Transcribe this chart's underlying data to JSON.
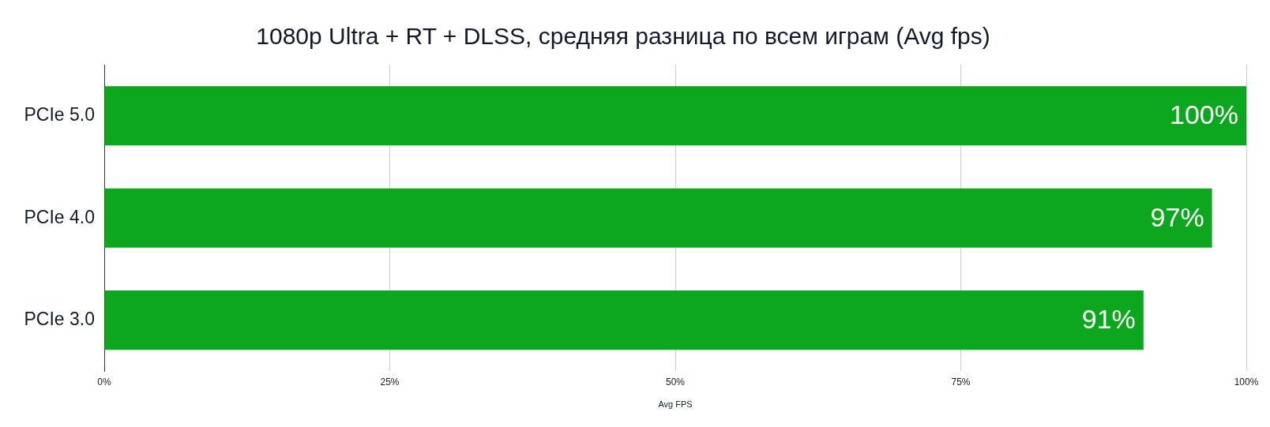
{
  "chart_data": {
    "type": "bar",
    "orientation": "horizontal",
    "title": "1080p Ultra + RT + DLSS, средняя разница по всем играм (Avg fps)",
    "xlabel": "Avg FPS",
    "categories": [
      "PCIe 5.0",
      "PCIe 4.0",
      "PCIe 3.0"
    ],
    "values": [
      100,
      97,
      91
    ],
    "color": "#0ca61f",
    "value_labels": [
      "100%",
      "97%",
      "91%"
    ],
    "xlim": [
      0,
      100
    ],
    "xticks": [
      {
        "value": 0,
        "label": "0%"
      },
      {
        "value": 25,
        "label": "25%"
      },
      {
        "value": 50,
        "label": "50%"
      },
      {
        "value": 75,
        "label": "75%"
      },
      {
        "value": 100,
        "label": "100%"
      }
    ],
    "grid": "x"
  }
}
